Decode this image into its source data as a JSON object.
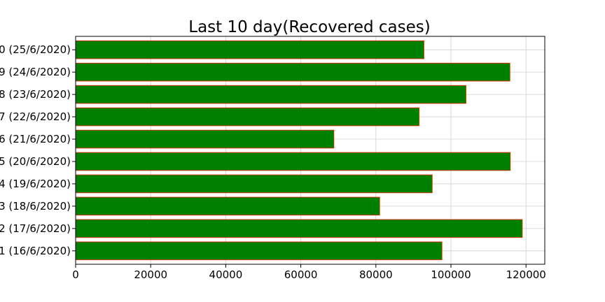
{
  "chart_data": {
    "type": "bar",
    "orientation": "horizontal",
    "title": "Last 10 day(Recovered cases)",
    "xlabel": "",
    "ylabel": "",
    "categories": [
      "1 (16/6/2020)",
      "2 (17/6/2020)",
      "3 (18/6/2020)",
      "4 (19/6/2020)",
      "5 (20/6/2020)",
      "6 (21/6/2020)",
      "7 (22/6/2020)",
      "8 (23/6/2020)",
      "9 (24/6/2020)",
      "0 (25/6/2020)"
    ],
    "values": [
      97600,
      119000,
      81000,
      95000,
      115800,
      68800,
      91500,
      104000,
      115700,
      92800
    ],
    "xlim": [
      0,
      125000
    ],
    "xticks": [
      "0",
      "20000",
      "40000",
      "60000",
      "80000",
      "100000",
      "120000"
    ],
    "grid": true,
    "bar_fill_color": "#008000",
    "bar_edge_color": "#cc3300"
  }
}
